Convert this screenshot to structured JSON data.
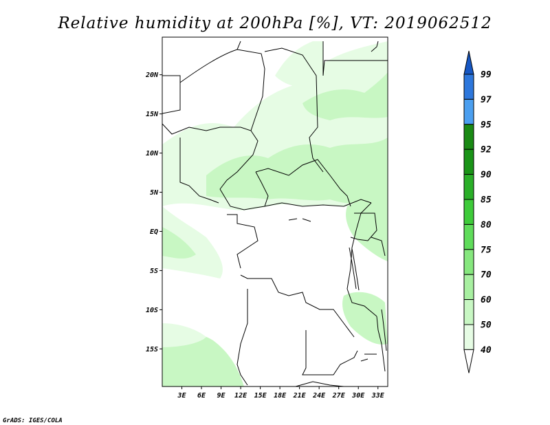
{
  "title": "Relative humidity at 200hPa [%], VT: 2019062512",
  "credit": "GrADS: IGES/COLA",
  "map": {
    "lat_labels": [
      "20N",
      "15N",
      "10N",
      "5N",
      "EQ",
      "5S",
      "10S",
      "15S"
    ],
    "lat_values": [
      20,
      15,
      10,
      5,
      0,
      -5,
      -10,
      -15
    ],
    "lon_labels": [
      "3E",
      "6E",
      "9E",
      "12E",
      "15E",
      "18E",
      "21E",
      "24E",
      "27E",
      "30E",
      "33E"
    ],
    "lon_values": [
      3,
      6,
      9,
      12,
      15,
      18,
      21,
      24,
      27,
      30,
      33
    ],
    "lat_range": [
      -19.8,
      24.8
    ],
    "lon_range": [
      0,
      34.5
    ]
  },
  "colorbar": {
    "labels": [
      "40",
      "50",
      "60",
      "70",
      "75",
      "80",
      "85",
      "90",
      "92",
      "95",
      "97",
      "99"
    ],
    "colors": [
      "#ffffff",
      "#e6fce4",
      "#c8f7c3",
      "#a8f0a1",
      "#86e77e",
      "#5fdc5a",
      "#3ecb3a",
      "#2aaf28",
      "#1a9417",
      "#1a8a14",
      "#4b9ff0",
      "#2d77dc",
      "#1657c3"
    ]
  },
  "colors": {
    "light": "#e6fce4",
    "medium": "#c8f7c3",
    "coast": "#000000"
  }
}
